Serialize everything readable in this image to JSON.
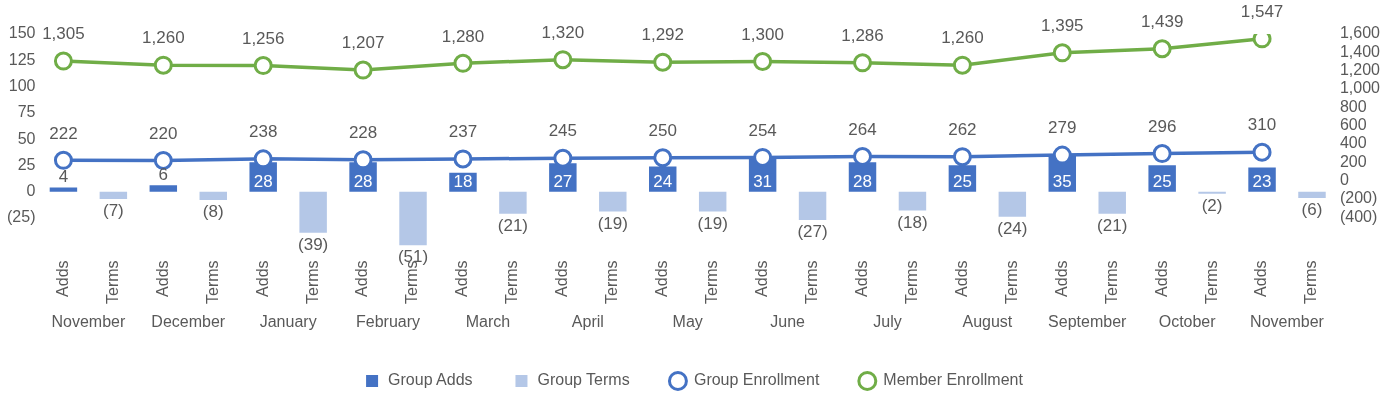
{
  "chart_data": {
    "type": "bar",
    "categories": [
      "Adds",
      "Terms",
      "Adds",
      "Terms",
      "Adds",
      "Terms",
      "Adds",
      "Terms",
      "Adds",
      "Terms",
      "Adds",
      "Terms",
      "Adds",
      "Terms",
      "Adds",
      "Terms",
      "Adds",
      "Terms",
      "Adds",
      "Terms",
      "Adds",
      "Terms",
      "Adds",
      "Terms",
      "Adds",
      "Terms"
    ],
    "annotations": [
      "November",
      "December",
      "January",
      "February",
      "March",
      "April",
      "May",
      "June",
      "July",
      "August",
      "September",
      "October",
      "November"
    ],
    "series": [
      {
        "name": "Group Adds",
        "color": "#4472c4",
        "values": [
          4,
          null,
          6,
          null,
          28,
          null,
          28,
          null,
          18,
          null,
          27,
          null,
          24,
          null,
          31,
          null,
          28,
          null,
          25,
          null,
          35,
          null,
          25,
          null,
          23,
          null
        ],
        "value_labels": [
          "4",
          null,
          "6",
          null,
          "28",
          null,
          "28",
          null,
          "18",
          null,
          "27",
          null,
          "24",
          null,
          "31",
          null,
          "28",
          null,
          "25",
          null,
          "35",
          null,
          "25",
          null,
          "23",
          null
        ]
      },
      {
        "name": "Group Terms",
        "color": "#b4c7e7",
        "values": [
          null,
          -7,
          null,
          -8,
          null,
          -39,
          null,
          -51,
          null,
          -21,
          null,
          -19,
          null,
          -19,
          null,
          -27,
          null,
          -18,
          null,
          -24,
          null,
          -21,
          null,
          -2,
          null,
          -6
        ],
        "value_labels": [
          null,
          "(7)",
          null,
          "(8)",
          null,
          "(39)",
          null,
          "(51)",
          null,
          "(21)",
          null,
          "(19)",
          null,
          "(19)",
          null,
          "(27)",
          null,
          "(18)",
          null,
          "(24)",
          null,
          "(21)",
          null,
          "(2)",
          null,
          "(6)"
        ]
      },
      {
        "name": "Group Enrollment",
        "type": "line",
        "axis": "y2",
        "color": "#4472c4",
        "values": [
          222,
          null,
          220,
          null,
          238,
          null,
          228,
          null,
          237,
          null,
          245,
          null,
          250,
          null,
          254,
          null,
          264,
          null,
          262,
          null,
          279,
          null,
          296,
          null,
          310,
          null
        ],
        "value_labels": [
          "222",
          null,
          "220",
          null,
          "238",
          null,
          "228",
          null,
          "237",
          null,
          "245",
          null,
          "250",
          null,
          "254",
          null,
          "264",
          null,
          "262",
          null,
          "279",
          null,
          "296",
          null,
          "310",
          null
        ]
      },
      {
        "name": "Member Enrollment",
        "type": "line",
        "axis": "y2",
        "color": "#70ad47",
        "values": [
          1305,
          null,
          1260,
          null,
          1256,
          null,
          1207,
          null,
          1280,
          null,
          1320,
          null,
          1292,
          null,
          1300,
          null,
          1286,
          null,
          1260,
          null,
          1395,
          null,
          1439,
          null,
          1547,
          null
        ],
        "value_labels": [
          "1,305",
          null,
          "1,260",
          null,
          "1,256",
          null,
          "1,207",
          null,
          "1,280",
          null,
          "1,320",
          null,
          "1,292",
          null,
          "1,300",
          null,
          "1,286",
          null,
          "1,260",
          null,
          "1,395",
          null,
          "1,439",
          null,
          "1,547",
          null
        ]
      }
    ],
    "ylim": [
      -55,
      150
    ],
    "yticks": [
      {
        "value": -25,
        "label": "(25)"
      },
      0,
      25,
      50,
      75,
      100,
      125,
      150
    ],
    "y2lim": [
      -750,
      1600
    ],
    "y2ticks": [
      {
        "value": -400,
        "label": "(400)"
      },
      {
        "value": -200,
        "label": "(200)"
      },
      0,
      200,
      400,
      600,
      800,
      {
        "value": 1000,
        "label": "1,000"
      },
      {
        "value": 1200,
        "label": "1,200"
      },
      {
        "value": 1400,
        "label": "1,400"
      },
      {
        "value": 1600,
        "label": "1,600"
      }
    ],
    "marker": "circle",
    "grid": false,
    "legend": "bottom"
  }
}
